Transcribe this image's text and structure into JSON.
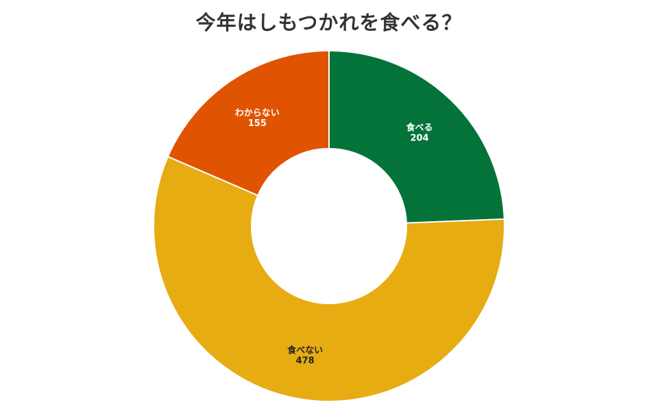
{
  "chart_data": {
    "type": "pie",
    "title": "今年はしもつかれを食べる？",
    "start_angle_deg": 0,
    "donut": true,
    "slices": [
      {
        "label": "食べる",
        "value": 204,
        "color": "#04733a",
        "text_color": "#ffffff"
      },
      {
        "label": "食べない",
        "value": 478,
        "color": "#e6ac12",
        "text_color": "#222222"
      },
      {
        "label": "わからない",
        "value": 155,
        "color": "#e05300",
        "text_color": "#ffffff"
      }
    ]
  }
}
